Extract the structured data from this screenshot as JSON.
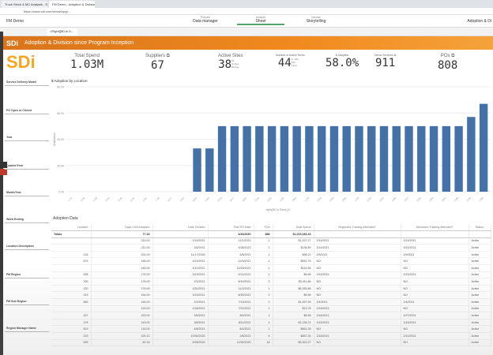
{
  "browser": {
    "tabs": [
      "Truck Stock & MC Analysis - Sc",
      "FM Demo - Adoption & Division"
    ],
    "url": "https://www.sdi.com/sense/app/..."
  },
  "qlik": {
    "app": "FM Demo",
    "nav": [
      {
        "small": "Prepare",
        "label": "Data manager"
      },
      {
        "small": "Analyze",
        "label": "Sheet"
      },
      {
        "small": "Narrate",
        "label": "Storytelling"
      }
    ],
    "right": "Adoption & Di",
    "selection_chip": "=Right([$0 to S..."
  },
  "banner": {
    "logo": "SDi",
    "title": "Adoption & Division since Program Inception"
  },
  "kpis": [
    {
      "label": "Total Spend",
      "value": "1.03M"
    },
    {
      "label": "Suppliers ⧉",
      "value": "67"
    },
    {
      "label": "Active Sites",
      "value": "38",
      "sub": "61 Sites Below"
    },
    {
      "label": "Number of Active Techs",
      "value": "44",
      "sub": "5.14k Per Tech"
    },
    {
      "label": "$ Adoption",
      "value": "58.0%"
    },
    {
      "label": "Demo Services ⧉",
      "value": "911"
    },
    {
      "label": "POs ⧉",
      "value": "808"
    }
  ],
  "filters": [
    "Service Delivery Model",
    "PO Open or Closed",
    "Year",
    "Quarter/Year",
    "Month/Year",
    "Week Ending",
    "Location Description",
    "FM Region",
    "FM Sub Region",
    "Region Manager Name"
  ],
  "chart_data": {
    "type": "bar",
    "title": "$ Adoption by Location",
    "ylabel": "$ Adoption",
    "xlabel": "right([$0 to Store],4)",
    "ylim": [
      0,
      80
    ],
    "yticks": [
      "0.00",
      "20.00",
      "40.00",
      "60.00",
      "80.00"
    ],
    "grid": true,
    "color": "#4472a8",
    "categories": [
      "1-01",
      "2134",
      "2136",
      "2142",
      "2145",
      "2148",
      "2151",
      "7-04",
      "8117",
      "2167",
      "9015",
      "2185",
      "2219",
      "8077",
      "8855",
      "2192",
      "2101",
      "2198",
      "2465",
      "1-08",
      "2255",
      "2265",
      "2302",
      "2-03",
      "2188",
      "2218",
      "2296",
      "2317",
      "2348",
      "2300",
      "2302",
      "2196",
      "2236",
      "2205"
    ],
    "values": [
      0,
      0,
      0,
      0,
      0,
      0,
      0,
      0,
      0,
      0,
      33,
      33,
      50,
      50,
      50,
      50,
      50,
      50,
      50,
      50,
      50,
      50,
      50,
      50,
      50,
      50,
      50,
      50,
      50,
      50,
      50,
      50,
      57,
      67
    ]
  },
  "table": {
    "title": "Adoption Data",
    "headers": [
      "Location",
      "Days Until Adoption",
      "Date Created",
      "First PO Date",
      "POs",
      "Total Spend",
      "Beginners Training Attended?",
      "Advanced Training Attended?",
      "Status"
    ],
    "totals": [
      "Totals",
      "77.33",
      "",
      "6/26/2020",
      "888",
      "$1,015,283.43",
      "",
      "",
      ""
    ],
    "rows": [
      [
        "",
        "218.00",
        "1/19/2021",
        "11/1/2021",
        "1",
        "$1,157.27",
        "3/14/2021",
        "3/14/2021",
        "Active"
      ],
      [
        "",
        "211.00",
        "3/5/2021",
        "9/28/2021",
        "1",
        "$136.89",
        "3/14/2021",
        "3/14/2021",
        "Active"
      ],
      [
        "218",
        "201.00",
        "11/17/2020",
        "6/8/2021",
        "1",
        "$98.21",
        "2/9/2021",
        "2/9/2021",
        "Active"
      ],
      [
        "875",
        "185.00",
        "4/14/2021",
        "11/5/2021",
        "1",
        "$552.78",
        "NO",
        "NO",
        "Active"
      ],
      [
        "",
        "180.00",
        "4/12/2021",
        "10/26/2021",
        "1",
        "$114.65",
        "NO",
        "NO",
        "Active"
      ],
      [
        "538",
        "176.00",
        "3/19/2021",
        "9/14/2021",
        "1",
        "$8.98",
        "3/15/2021",
        "3/15/2021",
        "Active"
      ],
      [
        "760",
        "176.00",
        "2/3/2021",
        "8/10/2021",
        "3",
        "$3,411.86",
        "NO",
        "NO",
        "Active"
      ],
      [
        "220",
        "176.00",
        "3/30/2021",
        "11/2/2021",
        "1",
        "$6,335.88",
        "NO",
        "NO",
        "Active"
      ],
      [
        "219",
        "164.00",
        "3/19/2021",
        "8/30/2021",
        "2",
        "$8.98",
        "NO",
        "NO",
        "Active"
      ],
      [
        "883",
        "163.00",
        "2/2/2021",
        "7/15/2021",
        "2",
        "$1,597.99",
        "2/4/2021",
        "2/4/2021",
        "Active"
      ],
      [
        "",
        "153.00",
        "2/18/2021",
        "7/22/2021",
        "1",
        "$13.78",
        "2/18/2021",
        "NO",
        "Active"
      ],
      [
        "427",
        "153.00",
        "3/5/2021",
        "8/4/2021",
        "1",
        "$8.98",
        "2/16/2021",
        "4/27/2021",
        "Active"
      ],
      [
        "278",
        "143.00",
        "3/5/2021",
        "8/11/2021",
        "4",
        "$1,238.74",
        "3/15/2021",
        "3/15/2021",
        "Active"
      ],
      [
        "819",
        "116.00",
        "4/8/2021",
        "8/2/2021",
        "1",
        "$851.28",
        "NO",
        "NO",
        "Active"
      ],
      [
        "233",
        "100.22",
        "10/30/2020",
        "2/8/2021",
        "4",
        "$857.34",
        "2/18/2021",
        "2/10/2021",
        "Active"
      ],
      [
        "595",
        "82.18",
        "5/28/2020",
        "12/30/2020",
        "18",
        "$6,303.27",
        "NO",
        "NO",
        "Active"
      ]
    ]
  }
}
